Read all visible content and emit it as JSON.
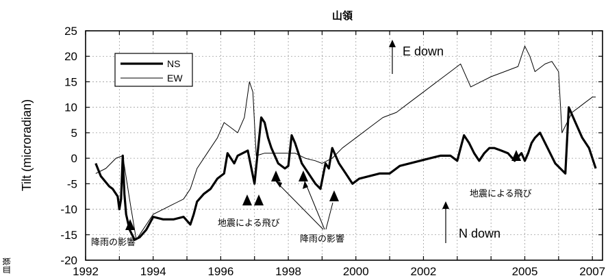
{
  "chart_data": {
    "type": "line",
    "title": "山領",
    "ylabel": "Tilt (microradian)",
    "xlabel": "",
    "xlim": [
      1992,
      2007.3
    ],
    "ylim": [
      -20,
      25
    ],
    "grid": true,
    "legend_position": "top-left",
    "x_ticks": [
      "1992",
      "1994",
      "1996",
      "1998",
      "2000",
      "2002",
      "2005",
      "2007"
    ],
    "y_ticks": [
      "25",
      "20",
      "15",
      "10",
      "5",
      "0",
      "-5",
      "-10",
      "-15",
      "-20"
    ],
    "series": [
      {
        "name": "NS",
        "x": [
          1992.3,
          1992.45,
          1992.7,
          1992.8,
          1992.95,
          1993.0,
          1993.05,
          1993.1,
          1993.15,
          1993.2,
          1993.3,
          1993.45,
          1993.6,
          1993.8,
          1994.0,
          1994.3,
          1994.6,
          1994.9,
          1995.1,
          1995.2,
          1995.3,
          1995.5,
          1995.7,
          1995.9,
          1996.1,
          1996.2,
          1996.4,
          1996.5,
          1996.8,
          1997.0,
          1997.2,
          1997.3,
          1997.4,
          1997.5,
          1997.7,
          1997.9,
          1998.0,
          1998.1,
          1998.2,
          1998.4,
          1998.6,
          1998.8,
          1998.95,
          1999.1,
          1999.2,
          1999.3,
          1999.5,
          1999.7,
          1999.9,
          2000.1,
          2000.4,
          2000.7,
          2001.0,
          2001.3,
          2001.6,
          2001.9,
          2002.2,
          2002.5,
          2002.8,
          2003.0,
          2003.1,
          2003.2,
          2003.35,
          2003.5,
          2003.65,
          2003.8,
          2003.95,
          2004.1,
          2004.3,
          2004.5,
          2004.7,
          2004.9,
          2005.0,
          2005.1,
          2005.2,
          2005.3,
          2005.45,
          2005.6,
          2005.75,
          2005.9,
          2006.05,
          2006.2,
          2006.3,
          2006.5,
          2006.7,
          2006.9,
          2007.1
        ],
        "y": [
          -1,
          -3.5,
          -5.5,
          -6,
          -7.5,
          -10,
          -8,
          0.5,
          -7,
          -11,
          -14,
          -16,
          -15.5,
          -14,
          -11.5,
          -12,
          -12,
          -11.5,
          -13,
          -11,
          -8.5,
          -7,
          -6,
          -4,
          -3,
          1,
          -1,
          0.5,
          1.5,
          -5,
          8,
          7,
          4,
          2,
          -1,
          -2,
          -1.5,
          4.5,
          3,
          -1,
          -3,
          -5,
          -6,
          -1,
          -2,
          2,
          -1,
          -3,
          -5,
          -4,
          -3.5,
          -3,
          -3,
          -1.5,
          -1,
          -0.5,
          0,
          0.5,
          0.5,
          -0.5,
          2,
          4.5,
          3,
          1,
          -0.5,
          1,
          2,
          2,
          1.5,
          1,
          -0.5,
          1,
          -0.5,
          1,
          3,
          4,
          5,
          3,
          1,
          -1,
          -2,
          -3,
          10,
          7,
          4,
          2,
          -2
        ]
      },
      {
        "name": "EW",
        "x": [
          1992.3,
          1992.6,
          1992.9,
          1993.1,
          1993.3,
          1993.5,
          1993.7,
          1994.0,
          1994.3,
          1994.6,
          1994.9,
          1995.1,
          1995.3,
          1995.6,
          1995.9,
          1996.1,
          1996.3,
          1996.5,
          1996.7,
          1996.85,
          1996.95,
          1997.05,
          1997.3,
          1997.6,
          1997.9,
          1998.2,
          1998.5,
          1998.8,
          1999.0,
          1999.3,
          1999.6,
          2000.0,
          2000.4,
          2000.8,
          2001.2,
          2001.6,
          2002.0,
          2002.4,
          2002.8,
          2003.1,
          2003.4,
          2003.7,
          2004.0,
          2004.4,
          2004.8,
          2005.0,
          2005.15,
          2005.3,
          2005.6,
          2005.8,
          2006.0,
          2006.1,
          2006.25,
          2006.4,
          2006.6,
          2006.8,
          2007.0,
          2007.1
        ],
        "y": [
          -3,
          -2,
          0,
          0.5,
          -8,
          -16,
          -14,
          -11,
          -10,
          -9,
          -8,
          -6,
          -2,
          1,
          4,
          7,
          6,
          5,
          8,
          15,
          13,
          0.5,
          1,
          1,
          1,
          1,
          0,
          -0.5,
          -1,
          0,
          2,
          4,
          6,
          8,
          9,
          11,
          13,
          15,
          17,
          18.5,
          14,
          15,
          16,
          17,
          18,
          22,
          20,
          17,
          18.5,
          19,
          17,
          5,
          7,
          9,
          10,
          11,
          12,
          12
        ]
      }
    ],
    "annotations": [
      {
        "text": "E down"
      },
      {
        "text": "N down"
      },
      {
        "text": "降雨の影響"
      },
      {
        "text": "地震による飛び"
      },
      {
        "text": "降雨の影響"
      },
      {
        "text": "地震による飛び"
      }
    ],
    "side_label": "皿嶺"
  },
  "colors": {
    "NS": "#000000",
    "EW": "#000000",
    "grid": "#9a9a9a"
  }
}
